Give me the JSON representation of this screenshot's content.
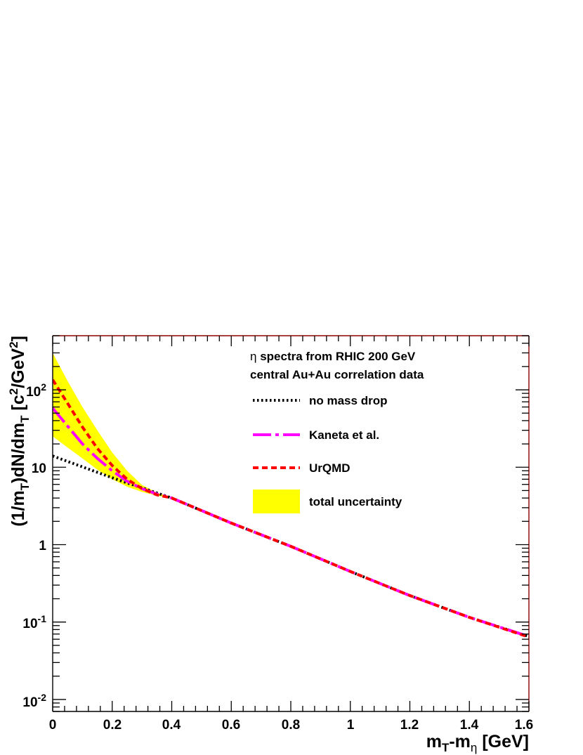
{
  "chart_data": {
    "type": "line",
    "title": "",
    "annotation": {
      "symbol": "η",
      "line1": " spectra from RHIC 200 GeV",
      "line2": "central Au+Au correlation data"
    },
    "xlabel": {
      "m": "m",
      "sub_T": "T",
      "minus_m": "-m",
      "sub_eta": "η",
      "unit": " [GeV]"
    },
    "ylabel": {
      "part1": "(1/m",
      "sub1": "T",
      "part2": ")dN/dm",
      "sub2": "T",
      "part3": " [c",
      "sup1": "2",
      "part4": "/GeV",
      "sup2": "2",
      "part5": "]"
    },
    "xlim": [
      0,
      1.6
    ],
    "ylim": [
      0.007,
      500
    ],
    "yscale": "log",
    "grid": false,
    "legend_position": "top-right",
    "xticks": [
      "0",
      "0.2",
      "0.4",
      "0.6",
      "0.8",
      "1",
      "1.2",
      "1.4",
      "1.6"
    ],
    "yticks": [
      {
        "base": "10",
        "exp": "-2"
      },
      {
        "base": "10",
        "exp": "-1"
      },
      {
        "base": "1",
        "exp": ""
      },
      {
        "base": "10",
        "exp": ""
      },
      {
        "base": "10",
        "exp": "2"
      }
    ],
    "band": {
      "name": "total uncertainty",
      "color": "#ffff00",
      "x": [
        0,
        0.05,
        0.1,
        0.15,
        0.2,
        0.25,
        0.3,
        0.35,
        0.4
      ],
      "upper": [
        300,
        130,
        60,
        30,
        15.5,
        9.0,
        5.9,
        4.7,
        4.05
      ],
      "lower": [
        25,
        18,
        13,
        9.3,
        7.0,
        5.6,
        4.8,
        4.3,
        4.0
      ]
    },
    "series": [
      {
        "name": "no mass drop",
        "color": "#000000",
        "dash": "dotted",
        "x": [
          0,
          0.2,
          0.4,
          0.6,
          0.8,
          1.0,
          1.2,
          1.4,
          1.6
        ],
        "y": [
          14,
          7.3,
          4.0,
          1.9,
          0.95,
          0.45,
          0.22,
          0.115,
          0.065
        ]
      },
      {
        "name": "Kaneta et al.",
        "color": "#ff00ff",
        "dash": "longdashdot",
        "x": [
          0,
          0.05,
          0.1,
          0.15,
          0.2,
          0.25,
          0.3,
          0.35,
          0.4,
          0.6,
          0.8,
          1.0,
          1.2,
          1.4,
          1.6
        ],
        "y": [
          58,
          34,
          20,
          13,
          9.0,
          6.6,
          5.3,
          4.5,
          4.0,
          1.9,
          0.95,
          0.45,
          0.22,
          0.115,
          0.065
        ]
      },
      {
        "name": "UrQMD",
        "color": "#ff0000",
        "dash": "dashed",
        "x": [
          0,
          0.05,
          0.1,
          0.15,
          0.2,
          0.25,
          0.3,
          0.35,
          0.4,
          0.6,
          0.8,
          1.0,
          1.2,
          1.4,
          1.6
        ],
        "y": [
          135,
          67,
          33,
          17.5,
          10.5,
          7.0,
          5.3,
          4.4,
          4.0,
          1.9,
          0.95,
          0.45,
          0.22,
          0.115,
          0.064
        ]
      }
    ]
  }
}
